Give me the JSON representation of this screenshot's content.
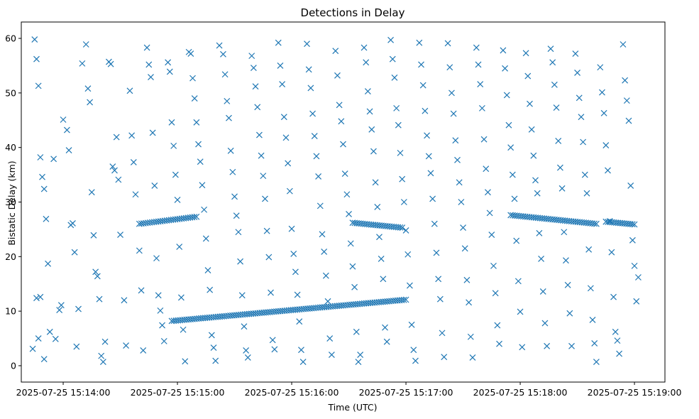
{
  "chart_data": {
    "type": "scatter",
    "title": "Detections in Delay",
    "xlabel": "Time (UTC)",
    "ylabel": "Bistatic Delay (km)",
    "x_tick_labels": [
      "2025-07-25 15:14:00",
      "2025-07-25 15:15:00",
      "2025-07-25 15:16:00",
      "2025-07-25 15:17:00",
      "2025-07-25 15:18:00",
      "2025-07-25 15:19:00"
    ],
    "y_ticks": [
      0,
      10,
      20,
      30,
      40,
      50,
      60
    ],
    "x_range": [
      "2025-07-25 15:13:38",
      "2025-07-25 15:19:16"
    ],
    "ylim": [
      -3,
      63
    ],
    "grid": false,
    "marker": "x",
    "color": "#1f77b4",
    "series": [
      {
        "time": "2025-07-25 15:13:45 .. 15:19:00",
        "points_seconds_after_15_13_45": "sampled detections",
        "values": []
      }
    ],
    "tracks": [
      {
        "start": [
          "2025-07-25 15:14:57",
          8.2
        ],
        "end": [
          "2025-07-25 15:17:00",
          12.1
        ]
      },
      {
        "start": [
          "2025-07-25 15:14:40",
          26.0
        ],
        "end": [
          "2025-07-25 15:15:10",
          27.3
        ]
      },
      {
        "start": [
          "2025-07-25 15:16:32",
          26.2
        ],
        "end": [
          "2025-07-25 15:16:58",
          25.3
        ]
      },
      {
        "start": [
          "2025-07-25 15:17:55",
          27.6
        ],
        "end": [
          "2025-07-25 15:18:40",
          26.0
        ]
      },
      {
        "start": [
          "2025-07-25 15:18:45",
          26.4
        ],
        "end": [
          "2025-07-25 15:19:00",
          25.9
        ]
      }
    ],
    "clutter_points": [
      [
        "15:13:45",
        59.8
      ],
      [
        "15:13:46",
        56.2
      ],
      [
        "15:13:47",
        51.3
      ],
      [
        "15:13:48",
        38.2
      ],
      [
        "15:13:49",
        34.6
      ],
      [
        "15:13:50",
        32.4
      ],
      [
        "15:13:51",
        26.9
      ],
      [
        "15:13:52",
        18.7
      ],
      [
        "15:13:46",
        12.4
      ],
      [
        "15:13:48",
        12.6
      ],
      [
        "15:13:44",
        3.1
      ],
      [
        "15:13:47",
        5.0
      ],
      [
        "15:13:50",
        1.2
      ],
      [
        "15:13:53",
        6.2
      ],
      [
        "15:13:55",
        37.9
      ],
      [
        "15:13:56",
        4.9
      ],
      [
        "15:13:58",
        10.2
      ],
      [
        "15:13:59",
        11.1
      ],
      [
        "15:14:00",
        45.1
      ],
      [
        "15:14:02",
        43.2
      ],
      [
        "15:14:03",
        39.5
      ],
      [
        "15:14:04",
        25.8
      ],
      [
        "15:14:05",
        26.1
      ],
      [
        "15:14:06",
        20.8
      ],
      [
        "15:14:07",
        3.5
      ],
      [
        "15:14:08",
        10.4
      ],
      [
        "15:14:10",
        55.4
      ],
      [
        "15:14:12",
        58.9
      ],
      [
        "15:14:13",
        50.8
      ],
      [
        "15:14:14",
        48.3
      ],
      [
        "15:14:15",
        31.8
      ],
      [
        "15:14:16",
        23.9
      ],
      [
        "15:14:17",
        17.2
      ],
      [
        "15:14:18",
        16.4
      ],
      [
        "15:14:19",
        12.2
      ],
      [
        "15:14:20",
        1.8
      ],
      [
        "15:14:21",
        0.7
      ],
      [
        "15:14:22",
        4.4
      ],
      [
        "15:14:24",
        55.7
      ],
      [
        "15:14:25",
        55.3
      ],
      [
        "15:14:26",
        36.5
      ],
      [
        "15:14:27",
        35.8
      ],
      [
        "15:14:28",
        41.9
      ],
      [
        "15:14:29",
        34.1
      ],
      [
        "15:14:30",
        24.0
      ],
      [
        "15:14:32",
        12.0
      ],
      [
        "15:14:33",
        3.7
      ],
      [
        "15:14:35",
        50.4
      ],
      [
        "15:14:36",
        42.2
      ],
      [
        "15:14:37",
        37.3
      ],
      [
        "15:14:38",
        31.4
      ],
      [
        "15:14:40",
        21.1
      ],
      [
        "15:14:41",
        13.8
      ],
      [
        "15:14:42",
        2.8
      ],
      [
        "15:14:44",
        58.3
      ],
      [
        "15:14:45",
        55.2
      ],
      [
        "15:14:46",
        52.9
      ],
      [
        "15:14:47",
        42.7
      ],
      [
        "15:14:48",
        33.0
      ],
      [
        "15:14:49",
        19.7
      ],
      [
        "15:14:50",
        12.9
      ],
      [
        "15:14:51",
        10.1
      ],
      [
        "15:14:52",
        7.4
      ],
      [
        "15:14:53",
        4.5
      ],
      [
        "15:14:55",
        55.6
      ],
      [
        "15:14:56",
        53.9
      ],
      [
        "15:14:57",
        44.6
      ],
      [
        "15:14:58",
        40.3
      ],
      [
        "15:14:59",
        35.0
      ],
      [
        "15:15:00",
        30.4
      ],
      [
        "15:15:01",
        21.8
      ],
      [
        "15:15:02",
        12.5
      ],
      [
        "15:15:03",
        6.6
      ],
      [
        "15:15:04",
        0.8
      ],
      [
        "15:15:06",
        57.5
      ],
      [
        "15:15:07",
        57.2
      ],
      [
        "15:15:08",
        52.7
      ],
      [
        "15:15:09",
        49.0
      ],
      [
        "15:15:10",
        44.6
      ],
      [
        "15:15:11",
        40.6
      ],
      [
        "15:15:12",
        37.4
      ],
      [
        "15:15:13",
        33.1
      ],
      [
        "15:15:14",
        28.6
      ],
      [
        "15:15:15",
        23.3
      ],
      [
        "15:15:16",
        17.5
      ],
      [
        "15:15:17",
        13.9
      ],
      [
        "15:15:18",
        5.6
      ],
      [
        "15:15:19",
        3.3
      ],
      [
        "15:15:20",
        0.9
      ],
      [
        "15:15:22",
        58.7
      ],
      [
        "15:15:24",
        57.1
      ],
      [
        "15:15:25",
        53.4
      ],
      [
        "15:15:26",
        48.5
      ],
      [
        "15:15:27",
        45.4
      ],
      [
        "15:15:28",
        39.4
      ],
      [
        "15:15:29",
        35.5
      ],
      [
        "15:15:30",
        31.0
      ],
      [
        "15:15:31",
        27.5
      ],
      [
        "15:15:32",
        24.5
      ],
      [
        "15:15:33",
        19.1
      ],
      [
        "15:15:34",
        12.9
      ],
      [
        "15:15:35",
        7.2
      ],
      [
        "15:15:36",
        2.8
      ],
      [
        "15:15:37",
        1.5
      ],
      [
        "15:15:39",
        56.8
      ],
      [
        "15:15:40",
        54.6
      ],
      [
        "15:15:41",
        51.2
      ],
      [
        "15:15:42",
        47.4
      ],
      [
        "15:15:43",
        42.3
      ],
      [
        "15:15:44",
        38.5
      ],
      [
        "15:15:45",
        34.8
      ],
      [
        "15:15:46",
        30.6
      ],
      [
        "15:15:47",
        24.7
      ],
      [
        "15:15:48",
        19.9
      ],
      [
        "15:15:49",
        13.4
      ],
      [
        "15:15:50",
        4.7
      ],
      [
        "15:15:51",
        3.0
      ],
      [
        "15:15:53",
        59.2
      ],
      [
        "15:15:54",
        55.0
      ],
      [
        "15:15:55",
        51.6
      ],
      [
        "15:15:56",
        45.6
      ],
      [
        "15:15:57",
        41.8
      ],
      [
        "15:15:58",
        37.1
      ],
      [
        "15:15:59",
        32.0
      ],
      [
        "15:16:00",
        25.1
      ],
      [
        "15:16:01",
        20.5
      ],
      [
        "15:16:02",
        17.2
      ],
      [
        "15:16:03",
        13.0
      ],
      [
        "15:16:04",
        8.1
      ],
      [
        "15:16:05",
        2.9
      ],
      [
        "15:16:06",
        0.7
      ],
      [
        "15:16:08",
        59.0
      ],
      [
        "15:16:09",
        54.3
      ],
      [
        "15:16:10",
        50.9
      ],
      [
        "15:16:11",
        46.2
      ],
      [
        "15:16:12",
        42.1
      ],
      [
        "15:16:13",
        38.4
      ],
      [
        "15:16:14",
        34.7
      ],
      [
        "15:16:15",
        29.3
      ],
      [
        "15:16:16",
        24.1
      ],
      [
        "15:16:17",
        20.9
      ],
      [
        "15:16:18",
        16.5
      ],
      [
        "15:16:19",
        11.8
      ],
      [
        "15:16:20",
        5.0
      ],
      [
        "15:16:21",
        2.0
      ],
      [
        "15:16:23",
        57.7
      ],
      [
        "15:16:24",
        53.2
      ],
      [
        "15:16:25",
        47.8
      ],
      [
        "15:16:26",
        44.8
      ],
      [
        "15:16:27",
        40.6
      ],
      [
        "15:16:28",
        35.2
      ],
      [
        "15:16:29",
        31.4
      ],
      [
        "15:16:30",
        27.8
      ],
      [
        "15:16:31",
        22.4
      ],
      [
        "15:16:32",
        18.2
      ],
      [
        "15:16:33",
        14.4
      ],
      [
        "15:16:34",
        6.2
      ],
      [
        "15:16:35",
        0.7
      ],
      [
        "15:16:36",
        2.0
      ],
      [
        "15:16:38",
        58.3
      ],
      [
        "15:16:39",
        55.6
      ],
      [
        "15:16:40",
        50.3
      ],
      [
        "15:16:41",
        46.6
      ],
      [
        "15:16:42",
        43.3
      ],
      [
        "15:16:43",
        39.3
      ],
      [
        "15:16:44",
        33.6
      ],
      [
        "15:16:45",
        29.1
      ],
      [
        "15:16:46",
        23.6
      ],
      [
        "15:16:47",
        19.6
      ],
      [
        "15:16:48",
        15.9
      ],
      [
        "15:16:49",
        7.0
      ],
      [
        "15:16:50",
        4.4
      ],
      [
        "15:16:52",
        59.7
      ],
      [
        "15:16:53",
        56.2
      ],
      [
        "15:16:54",
        52.8
      ],
      [
        "15:16:55",
        47.2
      ],
      [
        "15:16:56",
        44.1
      ],
      [
        "15:16:57",
        39.0
      ],
      [
        "15:16:58",
        34.2
      ],
      [
        "15:16:59",
        30.0
      ],
      [
        "15:17:00",
        24.8
      ],
      [
        "15:17:01",
        20.4
      ],
      [
        "15:17:02",
        14.7
      ],
      [
        "15:17:03",
        7.5
      ],
      [
        "15:17:04",
        2.9
      ],
      [
        "15:17:05",
        0.9
      ],
      [
        "15:17:07",
        59.2
      ],
      [
        "15:17:08",
        55.2
      ],
      [
        "15:17:09",
        51.4
      ],
      [
        "15:17:10",
        46.7
      ],
      [
        "15:17:11",
        42.2
      ],
      [
        "15:17:12",
        38.4
      ],
      [
        "15:17:13",
        35.3
      ],
      [
        "15:17:14",
        30.6
      ],
      [
        "15:17:15",
        26.0
      ],
      [
        "15:17:16",
        20.7
      ],
      [
        "15:17:17",
        15.9
      ],
      [
        "15:17:18",
        12.2
      ],
      [
        "15:17:19",
        6.0
      ],
      [
        "15:17:20",
        1.6
      ],
      [
        "15:17:22",
        59.1
      ],
      [
        "15:17:23",
        54.7
      ],
      [
        "15:17:24",
        50.0
      ],
      [
        "15:17:25",
        46.2
      ],
      [
        "15:17:26",
        41.3
      ],
      [
        "15:17:27",
        37.7
      ],
      [
        "15:17:28",
        33.6
      ],
      [
        "15:17:29",
        30.0
      ],
      [
        "15:17:30",
        25.3
      ],
      [
        "15:17:31",
        21.5
      ],
      [
        "15:17:32",
        15.7
      ],
      [
        "15:17:33",
        11.6
      ],
      [
        "15:17:34",
        5.3
      ],
      [
        "15:17:35",
        1.5
      ],
      [
        "15:17:37",
        58.3
      ],
      [
        "15:17:38",
        55.2
      ],
      [
        "15:17:39",
        51.6
      ],
      [
        "15:17:40",
        47.2
      ],
      [
        "15:17:41",
        41.5
      ],
      [
        "15:17:42",
        36.1
      ],
      [
        "15:17:43",
        31.8
      ],
      [
        "15:17:44",
        28.0
      ],
      [
        "15:17:45",
        24.0
      ],
      [
        "15:17:46",
        18.3
      ],
      [
        "15:17:47",
        13.3
      ],
      [
        "15:17:48",
        7.4
      ],
      [
        "15:17:49",
        4.0
      ],
      [
        "15:17:51",
        57.8
      ],
      [
        "15:17:52",
        54.5
      ],
      [
        "15:17:53",
        49.6
      ],
      [
        "15:17:54",
        44.1
      ],
      [
        "15:17:55",
        40.0
      ],
      [
        "15:17:56",
        35.0
      ],
      [
        "15:17:57",
        30.6
      ],
      [
        "15:17:58",
        22.9
      ],
      [
        "15:17:59",
        15.5
      ],
      [
        "15:18:00",
        9.9
      ],
      [
        "15:18:01",
        3.4
      ],
      [
        "15:18:03",
        57.3
      ],
      [
        "15:18:04",
        53.1
      ],
      [
        "15:18:05",
        48.0
      ],
      [
        "15:18:06",
        43.3
      ],
      [
        "15:18:07",
        38.5
      ],
      [
        "15:18:08",
        34.0
      ],
      [
        "15:18:09",
        31.6
      ],
      [
        "15:18:10",
        24.3
      ],
      [
        "15:18:11",
        19.6
      ],
      [
        "15:18:12",
        13.6
      ],
      [
        "15:18:13",
        7.8
      ],
      [
        "15:18:14",
        3.6
      ],
      [
        "15:18:16",
        58.1
      ],
      [
        "15:18:17",
        55.6
      ],
      [
        "15:18:18",
        51.5
      ],
      [
        "15:18:19",
        47.3
      ],
      [
        "15:18:20",
        41.2
      ],
      [
        "15:18:21",
        36.3
      ],
      [
        "15:18:22",
        32.5
      ],
      [
        "15:18:23",
        24.5
      ],
      [
        "15:18:24",
        19.3
      ],
      [
        "15:18:25",
        14.8
      ],
      [
        "15:18:26",
        9.6
      ],
      [
        "15:18:27",
        3.6
      ],
      [
        "15:18:29",
        57.2
      ],
      [
        "15:18:30",
        53.7
      ],
      [
        "15:18:31",
        49.1
      ],
      [
        "15:18:32",
        45.6
      ],
      [
        "15:18:33",
        41.0
      ],
      [
        "15:18:34",
        35.0
      ],
      [
        "15:18:35",
        31.6
      ],
      [
        "15:18:36",
        21.3
      ],
      [
        "15:18:37",
        14.2
      ],
      [
        "15:18:38",
        8.4
      ],
      [
        "15:18:39",
        4.1
      ],
      [
        "15:18:40",
        0.7
      ],
      [
        "15:18:42",
        54.7
      ],
      [
        "15:18:43",
        50.1
      ],
      [
        "15:18:44",
        46.3
      ],
      [
        "15:18:45",
        40.4
      ],
      [
        "15:18:46",
        35.8
      ],
      [
        "15:18:47",
        26.5
      ],
      [
        "15:18:48",
        20.8
      ],
      [
        "15:18:49",
        12.6
      ],
      [
        "15:18:50",
        6.2
      ],
      [
        "15:18:51",
        4.6
      ],
      [
        "15:18:52",
        2.2
      ],
      [
        "15:18:54",
        58.9
      ],
      [
        "15:18:55",
        52.3
      ],
      [
        "15:18:56",
        48.6
      ],
      [
        "15:18:57",
        44.9
      ],
      [
        "15:18:58",
        33.0
      ],
      [
        "15:18:59",
        23.0
      ],
      [
        "15:19:00",
        18.3
      ],
      [
        "15:19:01",
        11.8
      ],
      [
        "15:19:02",
        16.2
      ]
    ]
  }
}
